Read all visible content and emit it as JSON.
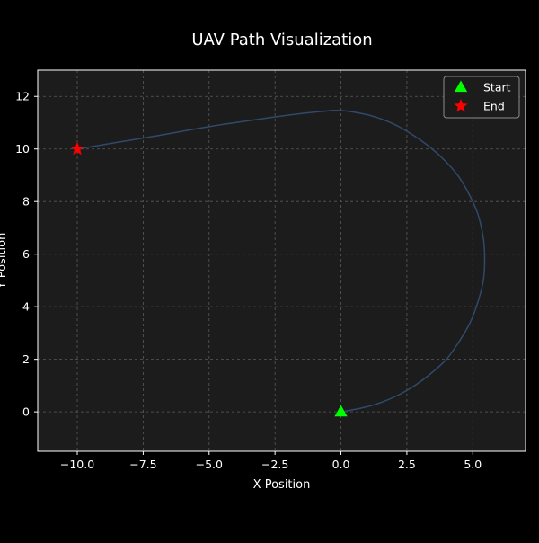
{
  "chart_data": {
    "type": "line",
    "title": "UAV Path Visualization",
    "xlabel": "X Position",
    "ylabel": "Y Position",
    "xlim": [
      -11.5,
      7.0
    ],
    "ylim": [
      -1.5,
      13.0
    ],
    "xticks": [
      -10.0,
      -7.5,
      -5.0,
      -2.5,
      0.0,
      2.5,
      5.0
    ],
    "xtick_labels": [
      "−10.0",
      "−7.5",
      "−5.0",
      "−2.5",
      "0.0",
      "2.5",
      "5.0"
    ],
    "yticks": [
      0,
      2,
      4,
      6,
      8,
      10,
      12
    ],
    "ytick_labels": [
      "0",
      "2",
      "4",
      "6",
      "8",
      "10",
      "12"
    ],
    "grid": true,
    "legend_position": "top-right",
    "series": [
      {
        "name": "",
        "color": "#2f4a6b",
        "points": [
          [
            0.0,
            0.0
          ],
          [
            0.8,
            0.15
          ],
          [
            1.5,
            0.35
          ],
          [
            2.2,
            0.65
          ],
          [
            2.8,
            1.0
          ],
          [
            3.4,
            1.45
          ],
          [
            4.0,
            2.0
          ],
          [
            4.5,
            2.7
          ],
          [
            4.9,
            3.4
          ],
          [
            5.2,
            4.2
          ],
          [
            5.4,
            5.0
          ],
          [
            5.45,
            5.8
          ],
          [
            5.4,
            6.6
          ],
          [
            5.2,
            7.5
          ],
          [
            4.9,
            8.2
          ],
          [
            4.5,
            8.9
          ],
          [
            4.0,
            9.5
          ],
          [
            3.4,
            10.05
          ],
          [
            2.7,
            10.55
          ],
          [
            2.0,
            10.95
          ],
          [
            1.2,
            11.25
          ],
          [
            0.4,
            11.42
          ],
          [
            -0.2,
            11.47
          ],
          [
            -0.7,
            11.43
          ],
          [
            -1.5,
            11.35
          ],
          [
            -3.0,
            11.15
          ],
          [
            -5.0,
            10.85
          ],
          [
            -7.0,
            10.5
          ],
          [
            -8.5,
            10.25
          ],
          [
            -10.0,
            10.0
          ]
        ]
      }
    ],
    "markers": [
      {
        "name": "Start",
        "shape": "triangle",
        "color": "#00ff00",
        "x": 0.0,
        "y": 0.0
      },
      {
        "name": "End",
        "shape": "star",
        "color": "#ff0000",
        "x": -10.0,
        "y": 10.0
      }
    ],
    "colors": {
      "figure_bg": "#000000",
      "axes_bg": "#1c1c1c",
      "grid": "#5a5a5a",
      "text": "#ffffff",
      "legend_bg": "#1c1c1c",
      "legend_border": "#8c8c8c"
    }
  }
}
